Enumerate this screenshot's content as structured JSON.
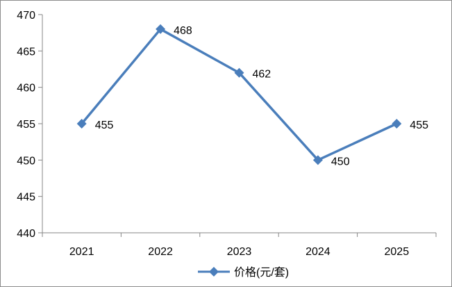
{
  "chart_data": {
    "type": "line",
    "categories": [
      "2021",
      "2022",
      "2023",
      "2024",
      "2025"
    ],
    "series": [
      {
        "name": "价格(元/套)",
        "values": [
          455,
          468,
          462,
          450,
          455
        ],
        "data_labels": [
          "455",
          "468",
          "462",
          "450",
          "455"
        ]
      }
    ],
    "title": "",
    "xlabel": "",
    "ylabel": "",
    "ylim": [
      440,
      470
    ],
    "yticks": [
      440,
      445,
      450,
      455,
      460,
      465,
      470
    ],
    "ytick_labels": [
      "440",
      "445",
      "450",
      "455",
      "460",
      "465",
      "470"
    ],
    "grid": false,
    "legend": "bottom",
    "marker": "diamond",
    "colors": {
      "series": "#4a7ebb"
    }
  }
}
